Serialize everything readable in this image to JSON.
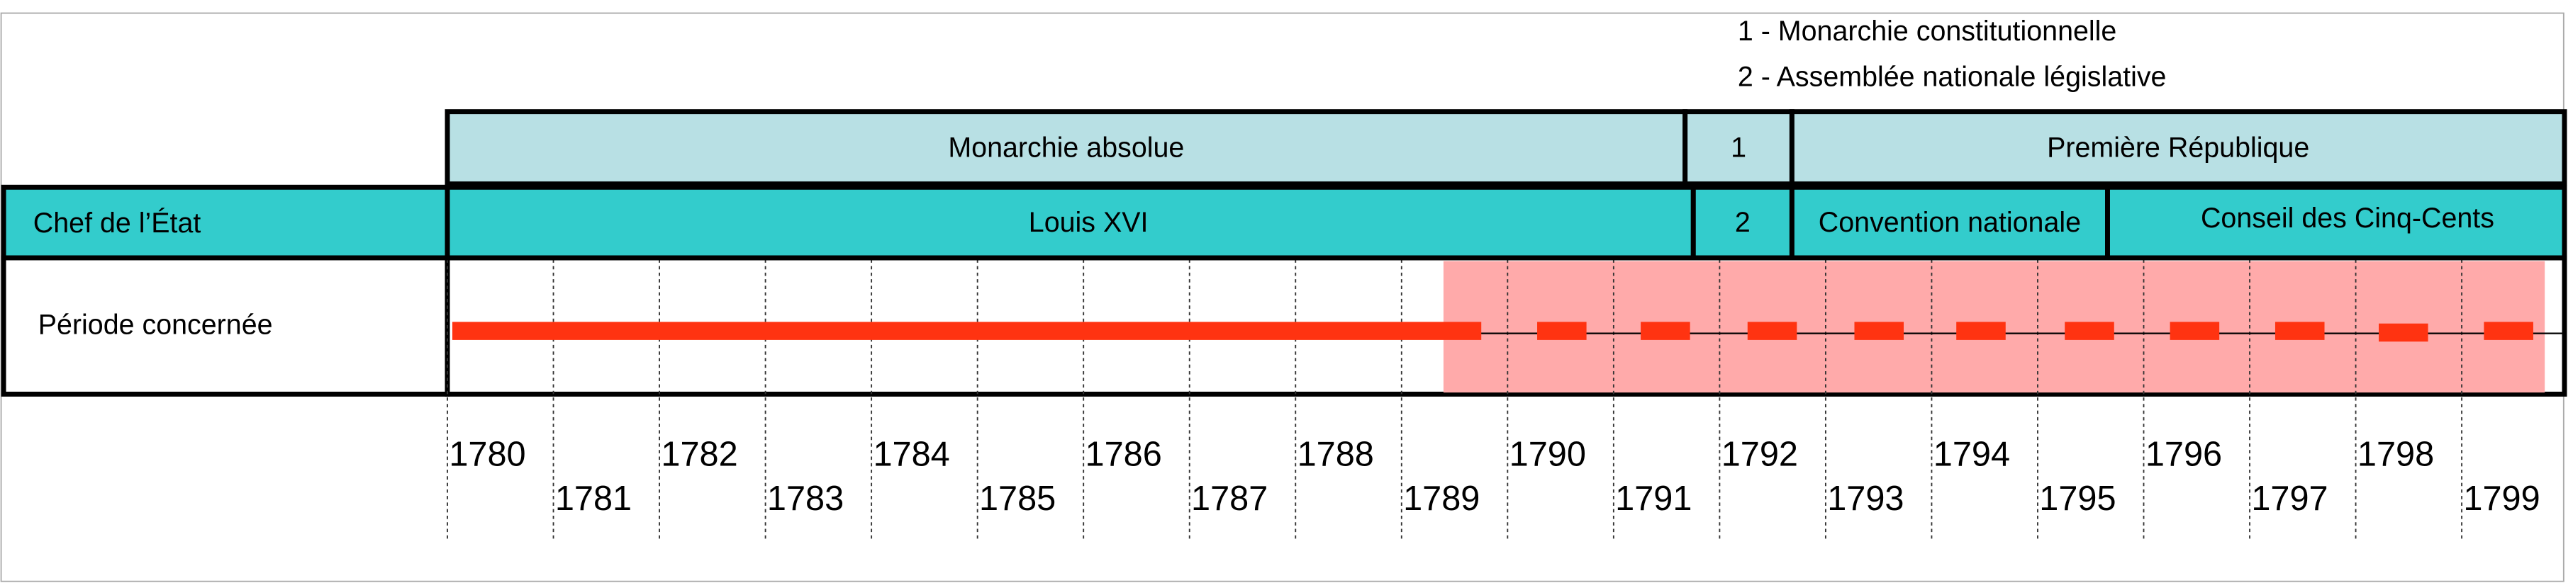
{
  "legend": [
    "1 - Monarchie constitutionnelle",
    "2 - Assemblée nationale législative"
  ],
  "regimes": [
    "Monarchie absolue",
    "1",
    "Première République"
  ],
  "head_label": "Chef de l’État",
  "heads": [
    "Louis XVI",
    "2",
    "Convention nationale",
    "Conseil des Cinq-Cents"
  ],
  "period_label": "Période concernée",
  "years": [
    "1780",
    "1781",
    "1782",
    "1783",
    "1784",
    "1785",
    "1786",
    "1787",
    "1788",
    "1789",
    "1790",
    "1791",
    "1792",
    "1793",
    "1794",
    "1795",
    "1796",
    "1797",
    "1798",
    "1799"
  ]
}
